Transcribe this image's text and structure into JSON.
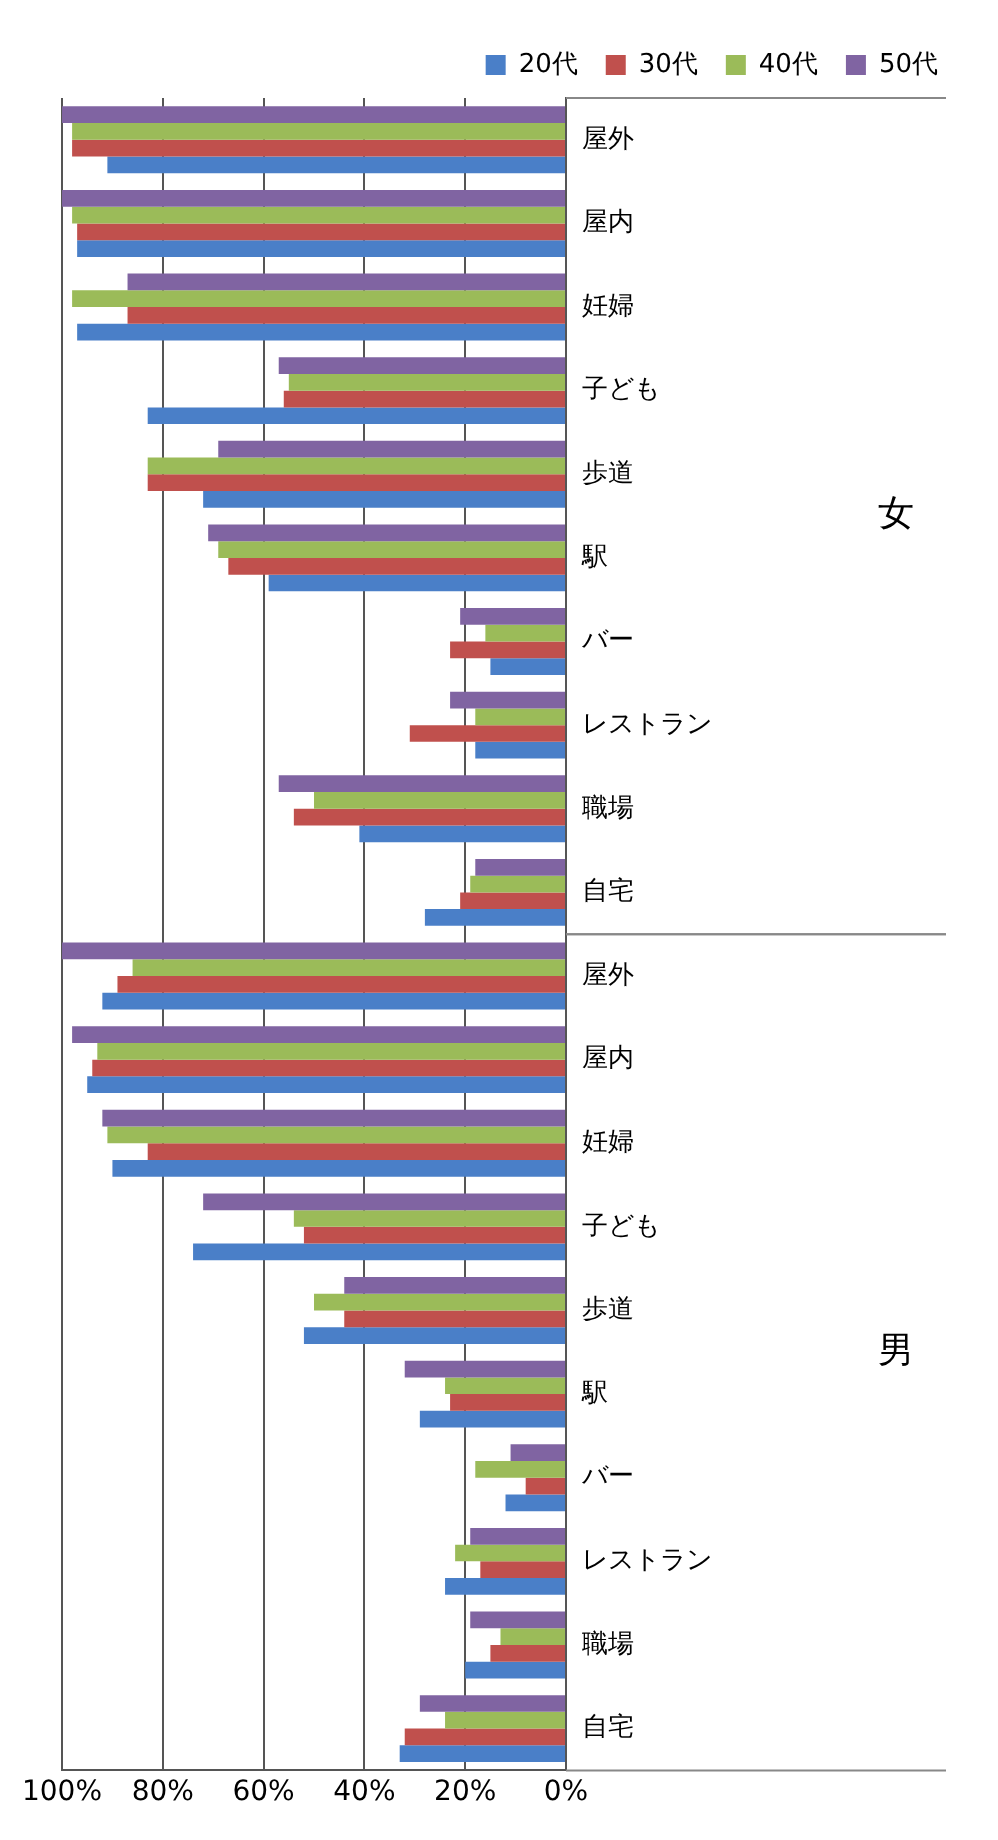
{
  "chart_data": {
    "type": "bar",
    "orientation": "horizontal",
    "categories": [
      "屋外",
      "屋内",
      "妊婦",
      "子ども",
      "歩道",
      "駅",
      "バー",
      "レストラン",
      "職場",
      "自宅",
      "屋外",
      "屋内",
      "妊婦",
      "子ども",
      "歩道",
      "駅",
      "バー",
      "レストラン",
      "職場",
      "自宅"
    ],
    "series": [
      {
        "name": "20代",
        "color": "#4a7fc8",
        "values": [
          91,
          97,
          97,
          83,
          72,
          59,
          15,
          18,
          41,
          28,
          92,
          95,
          90,
          74,
          52,
          29,
          12,
          24,
          20,
          33
        ]
      },
      {
        "name": "30代",
        "color": "#c0504d",
        "values": [
          98,
          97,
          87,
          56,
          83,
          67,
          23,
          31,
          54,
          21,
          89,
          94,
          83,
          52,
          44,
          23,
          8,
          17,
          15,
          32
        ]
      },
      {
        "name": "40代",
        "color": "#9bbb59",
        "values": [
          98,
          98,
          98,
          55,
          83,
          69,
          16,
          18,
          50,
          19,
          86,
          93,
          91,
          54,
          50,
          24,
          18,
          22,
          13,
          24
        ]
      },
      {
        "name": "50代",
        "color": "#8064a2",
        "values": [
          100,
          100,
          87,
          57,
          69,
          71,
          21,
          23,
          57,
          18,
          100,
          98,
          92,
          72,
          44,
          32,
          11,
          19,
          19,
          29
        ]
      }
    ],
    "xlim": [
      100,
      0
    ],
    "xticks": [
      {
        "value": 100,
        "label": "100%"
      },
      {
        "value": 80,
        "label": "80%"
      },
      {
        "value": 60,
        "label": "60%"
      },
      {
        "value": 40,
        "label": "40%"
      },
      {
        "value": 20,
        "label": "20%"
      },
      {
        "value": 0,
        "label": "0%"
      }
    ],
    "grid": "x",
    "legend": "top right",
    "annotations": [
      "女",
      "男"
    ]
  }
}
